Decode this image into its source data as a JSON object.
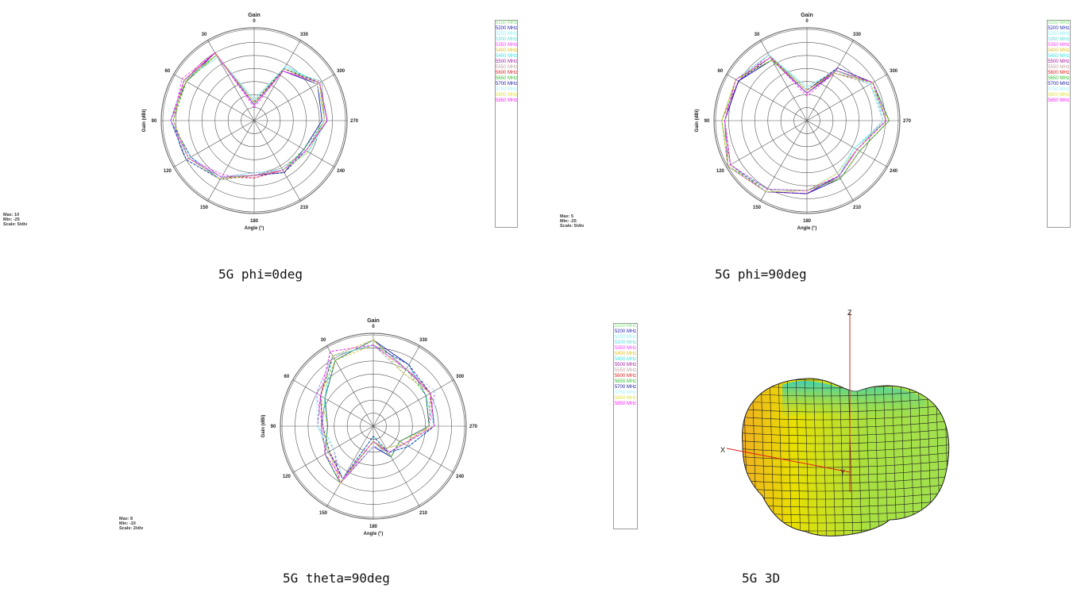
{
  "legend": {
    "entries": [
      {
        "label": "5150 MHz",
        "color": "#7fe07f"
      },
      {
        "label": "5200 MHz",
        "color": "#1f1fb0"
      },
      {
        "label": "5250 MHz",
        "color": "#8cf0f0"
      },
      {
        "label": "5300 MHz",
        "color": "#5ad8d8"
      },
      {
        "label": "5350 MHz",
        "color": "#ff40ff"
      },
      {
        "label": "5400 MHz",
        "color": "#e0c020"
      },
      {
        "label": "5450 MHz",
        "color": "#40e0e0"
      },
      {
        "label": "5500 MHz",
        "color": "#a020a0"
      },
      {
        "label": "5550 MHz",
        "color": "#c0a0a0"
      },
      {
        "label": "5600 MHz",
        "color": "#e02020"
      },
      {
        "label": "5650 MHz",
        "color": "#30c030"
      },
      {
        "label": "5700 MHz",
        "color": "#2020a0"
      },
      {
        "label": "5750 MHz",
        "color": "#a0f0ff"
      },
      {
        "label": "5800 MHz",
        "color": "#e0e040"
      },
      {
        "label": "5850 MHz",
        "color": "#ff20ff"
      }
    ]
  },
  "chart_data": [
    {
      "type": "polar",
      "title": "Gain",
      "xlabel": "Angle (°)",
      "ylabel": "Gain (dBi)",
      "caption": "5G phi=0deg",
      "stats": {
        "max": "Max: 10",
        "min": "Min: -25",
        "scale": "Scale: 5/div"
      },
      "r_range": [
        -25,
        10
      ],
      "angle_ticks": [
        "0",
        "30",
        "60",
        "90",
        "120",
        "150",
        "180",
        "210",
        "240",
        "270",
        "300",
        "330"
      ],
      "angles_deg": [
        0,
        30,
        60,
        90,
        120,
        150,
        180,
        210,
        240,
        270,
        300,
        330
      ],
      "series": [
        {
          "name": "5150 MHz",
          "values": [
            -18,
            4,
            6,
            7,
            4,
            0,
            -4,
            -3,
            -2,
            2,
            4,
            -2
          ]
        },
        {
          "name": "5200 MHz",
          "values": [
            -19,
            5,
            5,
            7,
            3,
            1,
            -4,
            -2,
            -3,
            1,
            3,
            -3
          ]
        },
        {
          "name": "5250 MHz",
          "values": [
            -17,
            4,
            6,
            6,
            4,
            0,
            -5,
            -3,
            -1,
            3,
            4,
            -1
          ]
        },
        {
          "name": "5300 MHz",
          "values": [
            -18,
            3,
            6,
            7,
            5,
            1,
            -4,
            -4,
            -2,
            2,
            5,
            -2
          ]
        },
        {
          "name": "5350 MHz",
          "values": [
            -20,
            5,
            7,
            6,
            4,
            -1,
            -3,
            -3,
            -2,
            3,
            4,
            -3
          ]
        },
        {
          "name": "5400 MHz",
          "values": [
            -18,
            4,
            5,
            7,
            4,
            0,
            -4,
            -2,
            -2,
            2,
            3,
            -2
          ]
        },
        {
          "name": "5450 MHz",
          "values": [
            -17,
            4,
            6,
            7,
            3,
            1,
            -4,
            -3,
            -1,
            2,
            4,
            -1
          ]
        },
        {
          "name": "5500 MHz",
          "values": [
            -19,
            5,
            6,
            6,
            4,
            0,
            -5,
            -3,
            -2,
            3,
            4,
            -2
          ]
        },
        {
          "name": "5550 MHz",
          "values": [
            -18,
            4,
            6,
            7,
            4,
            1,
            -4,
            -4,
            -2,
            2,
            5,
            -3
          ]
        },
        {
          "name": "5600 MHz",
          "values": [
            -18,
            5,
            6,
            7,
            4,
            0,
            -3,
            -3,
            -2,
            2,
            4,
            -2
          ]
        },
        {
          "name": "5650 MHz",
          "values": [
            -19,
            4,
            5,
            6,
            4,
            0,
            -4,
            -3,
            -3,
            2,
            4,
            -2
          ]
        },
        {
          "name": "5700 MHz",
          "values": [
            -18,
            4,
            6,
            7,
            5,
            1,
            -4,
            -2,
            -2,
            3,
            4,
            -2
          ]
        },
        {
          "name": "5750 MHz",
          "values": [
            -17,
            3,
            6,
            7,
            4,
            0,
            -5,
            -3,
            -2,
            2,
            3,
            -1
          ]
        },
        {
          "name": "5800 MHz",
          "values": [
            -18,
            4,
            6,
            6,
            4,
            1,
            -4,
            -3,
            -1,
            2,
            4,
            -2
          ]
        },
        {
          "name": "5850 MHz",
          "values": [
            -19,
            5,
            6,
            7,
            4,
            0,
            -4,
            -3,
            -2,
            3,
            4,
            -3
          ]
        }
      ]
    },
    {
      "type": "polar",
      "title": "Gain",
      "xlabel": "Angle (°)",
      "ylabel": "Gain (dBi)",
      "caption": "5G phi=90deg",
      "stats": {
        "max": "Max: 5",
        "min": "Min: -25",
        "scale": "Scale: 5/div"
      },
      "r_range": [
        -25,
        5
      ],
      "angle_ticks": [
        "0",
        "30",
        "60",
        "90",
        "120",
        "150",
        "180",
        "210",
        "240",
        "270",
        "300",
        "330"
      ],
      "angles_deg": [
        0,
        30,
        60,
        90,
        120,
        150,
        180,
        210,
        240,
        270,
        300,
        330
      ],
      "series": [
        {
          "name": "5150 MHz",
          "values": [
            -15,
            -1,
            2,
            2,
            4,
            2,
            -2,
            -4,
            -6,
            1,
            0,
            -6
          ]
        },
        {
          "name": "5200 MHz",
          "values": [
            -16,
            -2,
            1,
            2,
            5,
            2,
            -1,
            -3,
            -5,
            2,
            0,
            -7
          ]
        },
        {
          "name": "5250 MHz",
          "values": [
            -14,
            -1,
            2,
            3,
            4,
            1,
            -2,
            -5,
            -7,
            1,
            -1,
            -6
          ]
        },
        {
          "name": "5300 MHz",
          "values": [
            -15,
            0,
            2,
            2,
            4,
            2,
            -2,
            -4,
            -6,
            0,
            0,
            -5
          ]
        },
        {
          "name": "5350 MHz",
          "values": [
            -17,
            -1,
            1,
            2,
            5,
            2,
            -1,
            -4,
            -6,
            1,
            0,
            -7
          ]
        },
        {
          "name": "5400 MHz",
          "values": [
            -15,
            -2,
            2,
            3,
            4,
            2,
            -2,
            -3,
            -5,
            2,
            -1,
            -6
          ]
        },
        {
          "name": "5450 MHz",
          "values": [
            -14,
            -1,
            2,
            2,
            4,
            1,
            -2,
            -4,
            -7,
            1,
            0,
            -6
          ]
        },
        {
          "name": "5500 MHz",
          "values": [
            -16,
            0,
            1,
            3,
            5,
            2,
            -1,
            -4,
            -6,
            1,
            0,
            -5
          ]
        },
        {
          "name": "5550 MHz",
          "values": [
            -15,
            -1,
            2,
            2,
            4,
            2,
            -2,
            -5,
            -6,
            0,
            -1,
            -7
          ]
        },
        {
          "name": "5600 MHz",
          "values": [
            -15,
            -1,
            2,
            2,
            4,
            2,
            -2,
            -4,
            -6,
            1,
            0,
            -6
          ]
        },
        {
          "name": "5650 MHz",
          "values": [
            -16,
            -2,
            2,
            3,
            5,
            1,
            -2,
            -3,
            -5,
            2,
            0,
            -6
          ]
        },
        {
          "name": "5700 MHz",
          "values": [
            -15,
            -1,
            1,
            2,
            4,
            2,
            -1,
            -4,
            -6,
            1,
            0,
            -5
          ]
        },
        {
          "name": "5750 MHz",
          "values": [
            -14,
            0,
            2,
            2,
            4,
            2,
            -2,
            -4,
            -7,
            0,
            -1,
            -6
          ]
        },
        {
          "name": "5800 MHz",
          "values": [
            -15,
            -1,
            2,
            3,
            5,
            2,
            -2,
            -5,
            -6,
            1,
            0,
            -7
          ]
        },
        {
          "name": "5850 MHz",
          "values": [
            -16,
            -1,
            2,
            2,
            4,
            1,
            -2,
            -4,
            -6,
            1,
            0,
            -6
          ]
        }
      ]
    },
    {
      "type": "polar",
      "title": "Gain",
      "xlabel": "Angle (°)",
      "ylabel": "Gain (dBi)",
      "caption": "5G theta=90deg",
      "stats": {
        "max": "Max: 8",
        "min": "Min: -10",
        "scale": "Scale: 2/div"
      },
      "r_range": [
        -10,
        8
      ],
      "angle_ticks": [
        "0",
        "30",
        "60",
        "90",
        "120",
        "150",
        "180",
        "210",
        "240",
        "270",
        "300",
        "330"
      ],
      "angles_deg": [
        0,
        30,
        60,
        90,
        120,
        150,
        180,
        210,
        240,
        270,
        300,
        330
      ],
      "series": [
        {
          "name": "5150 MHz",
          "values": [
            6,
            6,
            2,
            0,
            0,
            2,
            -7,
            -4,
            -3,
            2,
            3,
            3
          ]
        },
        {
          "name": "5200 MHz",
          "values": [
            7,
            5,
            1,
            -1,
            1,
            3,
            -6,
            -3,
            -4,
            1,
            2,
            4
          ]
        },
        {
          "name": "5250 MHz",
          "values": [
            6,
            6,
            2,
            1,
            0,
            2,
            -8,
            -4,
            -2,
            2,
            3,
            3
          ]
        },
        {
          "name": "5300 MHz",
          "values": [
            6,
            7,
            1,
            0,
            -1,
            2,
            -7,
            -5,
            -3,
            2,
            3,
            2
          ]
        },
        {
          "name": "5350 MHz",
          "values": [
            7,
            6,
            3,
            0,
            0,
            3,
            -6,
            -4,
            -3,
            1,
            4,
            3
          ]
        },
        {
          "name": "5400 MHz",
          "values": [
            6,
            5,
            2,
            -1,
            1,
            2,
            -7,
            -3,
            -4,
            2,
            3,
            3
          ]
        },
        {
          "name": "5450 MHz",
          "values": [
            6,
            6,
            1,
            0,
            0,
            2,
            -8,
            -4,
            -2,
            2,
            2,
            4
          ]
        },
        {
          "name": "5500 MHz",
          "values": [
            7,
            6,
            2,
            1,
            -1,
            3,
            -7,
            -4,
            -3,
            1,
            3,
            3
          ]
        },
        {
          "name": "5550 MHz",
          "values": [
            6,
            7,
            2,
            0,
            0,
            2,
            -6,
            -5,
            -3,
            2,
            3,
            2
          ]
        },
        {
          "name": "5600 MHz",
          "values": [
            6,
            6,
            2,
            0,
            0,
            2,
            -7,
            -4,
            -3,
            2,
            3,
            3
          ]
        },
        {
          "name": "5650 MHz",
          "values": [
            7,
            5,
            1,
            -1,
            1,
            3,
            -7,
            -3,
            -4,
            1,
            2,
            3
          ]
        },
        {
          "name": "5700 MHz",
          "values": [
            6,
            6,
            2,
            0,
            0,
            2,
            -8,
            -4,
            -2,
            2,
            3,
            4
          ]
        },
        {
          "name": "5750 MHz",
          "values": [
            6,
            6,
            3,
            1,
            -1,
            2,
            -6,
            -4,
            -3,
            2,
            4,
            3
          ]
        },
        {
          "name": "5800 MHz",
          "values": [
            7,
            6,
            2,
            0,
            0,
            3,
            -7,
            -5,
            -3,
            1,
            3,
            2
          ]
        },
        {
          "name": "5850 MHz",
          "values": [
            6,
            7,
            2,
            0,
            1,
            2,
            -7,
            -4,
            -3,
            2,
            3,
            3
          ]
        }
      ]
    }
  ],
  "plot3d": {
    "caption": "5G 3D",
    "axis_x": "X",
    "axis_y": "Y",
    "axis_z": "Z",
    "colors": {
      "low": "#e8e000",
      "mid": "#a8e040",
      "high": "#40d0b0",
      "edge": "#f0a020"
    }
  }
}
